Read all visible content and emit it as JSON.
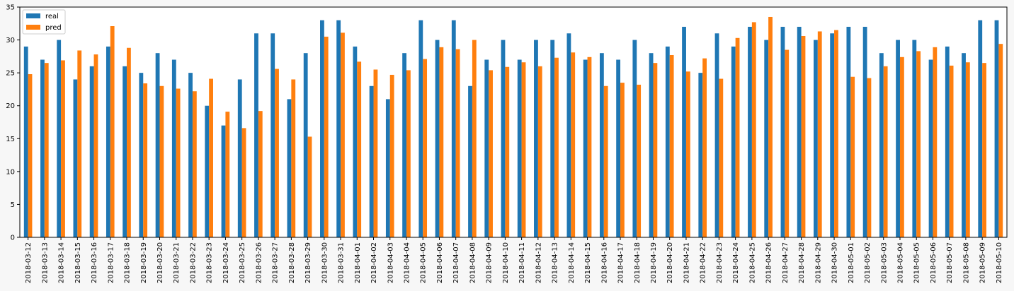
{
  "chart_data": {
    "type": "bar",
    "title": "",
    "xlabel": "",
    "ylabel": "",
    "ylim": [
      0,
      35
    ],
    "yticks": [
      0,
      5,
      10,
      15,
      20,
      25,
      30,
      35
    ],
    "legend_position": "top-left",
    "grid": false,
    "categories": [
      "2018-03-12",
      "2018-03-13",
      "2018-03-14",
      "2018-03-15",
      "2018-03-16",
      "2018-03-17",
      "2018-03-18",
      "2018-03-19",
      "2018-03-20",
      "2018-03-21",
      "2018-03-22",
      "2018-03-23",
      "2018-03-24",
      "2018-03-25",
      "2018-03-26",
      "2018-03-27",
      "2018-03-28",
      "2018-03-29",
      "2018-03-30",
      "2018-03-31",
      "2018-04-01",
      "2018-04-02",
      "2018-04-03",
      "2018-04-04",
      "2018-04-05",
      "2018-04-06",
      "2018-04-07",
      "2018-04-08",
      "2018-04-09",
      "2018-04-10",
      "2018-04-11",
      "2018-04-12",
      "2018-04-13",
      "2018-04-14",
      "2018-04-15",
      "2018-04-16",
      "2018-04-17",
      "2018-04-18",
      "2018-04-19",
      "2018-04-20",
      "2018-04-21",
      "2018-04-22",
      "2018-04-23",
      "2018-04-24",
      "2018-04-25",
      "2018-04-26",
      "2018-04-27",
      "2018-04-28",
      "2018-04-29",
      "2018-04-30",
      "2018-05-01",
      "2018-05-02",
      "2018-05-03",
      "2018-05-04",
      "2018-05-05",
      "2018-05-06",
      "2018-05-07",
      "2018-05-08",
      "2018-05-09",
      "2018-05-10"
    ],
    "series": [
      {
        "name": "real",
        "color": "#1f77b4",
        "values": [
          29,
          27,
          30,
          24,
          26,
          29,
          26,
          25,
          28,
          27,
          25,
          20,
          17,
          24,
          31,
          31,
          21,
          28,
          33,
          33,
          29,
          23,
          21,
          28,
          33,
          30,
          33,
          23,
          27,
          30,
          27,
          30,
          30,
          31,
          27,
          28,
          27,
          30,
          28,
          29,
          32,
          25,
          31,
          29,
          32,
          30,
          32,
          32,
          30,
          31,
          32,
          32,
          28,
          30,
          30,
          27,
          29,
          28,
          33,
          33
        ]
      },
      {
        "name": "pred",
        "color": "#ff7f0e",
        "values": [
          24.8,
          26.5,
          26.9,
          28.4,
          27.8,
          32.1,
          28.8,
          23.4,
          23.0,
          22.6,
          22.2,
          24.1,
          19.1,
          16.6,
          19.2,
          25.6,
          24.0,
          15.3,
          30.5,
          31.1,
          26.7,
          25.5,
          24.7,
          25.4,
          27.1,
          28.9,
          28.6,
          30.0,
          25.4,
          25.9,
          26.6,
          26.0,
          27.3,
          28.1,
          27.4,
          23.0,
          23.5,
          23.2,
          26.5,
          27.7,
          25.2,
          27.2,
          24.1,
          30.3,
          32.7,
          33.5,
          28.5,
          30.6,
          31.3,
          31.5,
          24.4,
          24.2,
          26.0,
          27.4,
          28.3,
          28.9,
          26.1,
          26.6,
          26.5,
          29.4
        ]
      }
    ]
  }
}
